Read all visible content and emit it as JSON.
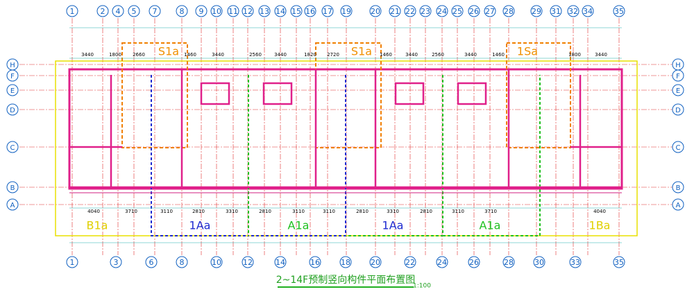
{
  "title": "2~14F预制竖向构件平面布置图",
  "scale": "1:100",
  "top_axes": [
    "1",
    "2",
    "4",
    "5",
    "7",
    "8",
    "9",
    "10",
    "11",
    "12",
    "13",
    "14",
    "15",
    "16",
    "17",
    "19",
    "20",
    "21",
    "22",
    "23",
    "24",
    "25",
    "26",
    "27",
    "28",
    "29",
    "31",
    "32",
    "34",
    "35"
  ],
  "bottom_axes": [
    "1",
    "3",
    "6",
    "8",
    "10",
    "12",
    "14",
    "16",
    "18",
    "20",
    "22",
    "24",
    "26",
    "28",
    "30",
    "33",
    "35"
  ],
  "row_axes": [
    "H",
    "F",
    "E",
    "D",
    "C",
    "B",
    "A"
  ],
  "units": [
    "B1a",
    "1Aa",
    "A1a",
    "1Aa",
    "A1a",
    "1Ba"
  ],
  "stair_labels": [
    "S1a",
    "S1a",
    "1Sa"
  ],
  "top_dims": [
    "3440",
    "1800",
    "2660",
    "1460",
    "3440",
    "2560",
    "3440",
    "1820",
    "2720",
    "1460",
    "3440",
    "2560",
    "3440",
    "1460",
    "1800",
    "3440"
  ],
  "bottom_dims": [
    "4040",
    "3710",
    "3110",
    "2810",
    "3310",
    "2810",
    "3110",
    "3110",
    "2810",
    "3310",
    "2810",
    "3110",
    "3710",
    "4040"
  ]
}
